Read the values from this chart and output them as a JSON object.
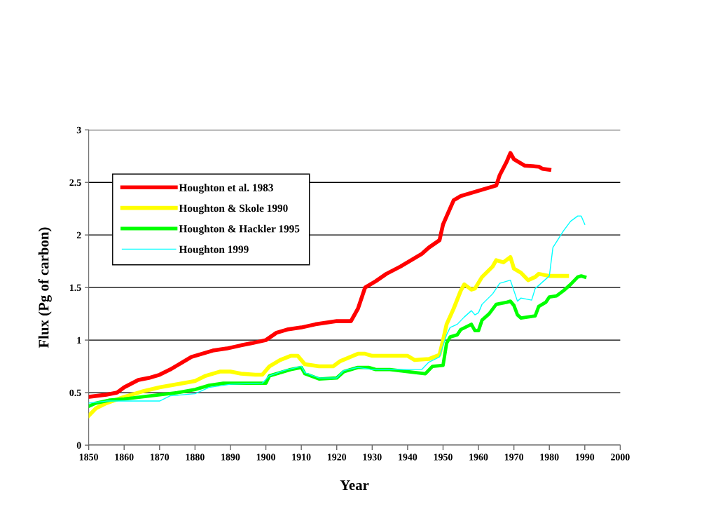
{
  "chart_data": {
    "type": "line",
    "xlabel": "Year",
    "ylabel": "Flux (Pg of carbon)",
    "xlim": [
      1850,
      2000
    ],
    "xticks": [
      1850,
      1860,
      1870,
      1880,
      1890,
      1900,
      1910,
      1920,
      1930,
      1940,
      1950,
      1960,
      1970,
      1980,
      1990,
      2000
    ],
    "ylim": [
      0,
      3
    ],
    "yticks": [
      0,
      0.5,
      1,
      1.5,
      2,
      2.5,
      3
    ],
    "grid": "y",
    "legend": "top left",
    "marker": "none",
    "line_style": "solid",
    "series": [
      {
        "name": "Houghton et al. 1983",
        "color": "#ff0000",
        "x": [
          1850,
          1855,
          1858,
          1860,
          1864,
          1867,
          1870,
          1873,
          1876,
          1879,
          1882,
          1885,
          1889,
          1893,
          1896,
          1900,
          1903,
          1906,
          1910,
          1914,
          1920,
          1924,
          1926,
          1928,
          1931,
          1934,
          1938,
          1941,
          1944,
          1946,
          1949,
          1950,
          1953,
          1955,
          1958,
          1961,
          1965,
          1966,
          1968,
          1969,
          1970,
          1973,
          1977,
          1978,
          1980
        ],
        "values": [
          0.46,
          0.48,
          0.5,
          0.55,
          0.62,
          0.64,
          0.67,
          0.72,
          0.78,
          0.84,
          0.87,
          0.9,
          0.92,
          0.95,
          0.97,
          1.0,
          1.07,
          1.1,
          1.12,
          1.15,
          1.18,
          1.18,
          1.3,
          1.5,
          1.56,
          1.63,
          1.7,
          1.76,
          1.82,
          1.88,
          1.95,
          2.1,
          2.33,
          2.37,
          2.4,
          2.43,
          2.47,
          2.57,
          2.7,
          2.78,
          2.72,
          2.66,
          2.65,
          2.63,
          2.62
        ]
      },
      {
        "name": "Houghton & Skole 1990",
        "color": "#ffff00",
        "x": [
          1850,
          1852,
          1855,
          1860,
          1865,
          1870,
          1875,
          1880,
          1883,
          1887,
          1890,
          1893,
          1897,
          1899,
          1901,
          1904,
          1907,
          1909,
          1911,
          1915,
          1919,
          1921,
          1926,
          1928,
          1930,
          1935,
          1940,
          1942,
          1946,
          1949,
          1950,
          1951,
          1953,
          1955,
          1956,
          1958,
          1959,
          1961,
          1964,
          1965,
          1967,
          1969,
          1970,
          1972,
          1974,
          1976,
          1977,
          1980,
          1985
        ],
        "values": [
          0.28,
          0.35,
          0.4,
          0.46,
          0.51,
          0.55,
          0.58,
          0.61,
          0.66,
          0.7,
          0.7,
          0.68,
          0.67,
          0.67,
          0.75,
          0.81,
          0.85,
          0.85,
          0.77,
          0.75,
          0.75,
          0.8,
          0.87,
          0.87,
          0.85,
          0.85,
          0.85,
          0.81,
          0.82,
          0.86,
          1.0,
          1.15,
          1.3,
          1.47,
          1.53,
          1.48,
          1.49,
          1.6,
          1.7,
          1.76,
          1.74,
          1.79,
          1.68,
          1.64,
          1.57,
          1.6,
          1.63,
          1.61,
          1.61
        ]
      },
      {
        "name": "Houghton & Hackler 1995",
        "color": "#00ff00",
        "x": [
          1850,
          1852,
          1856,
          1860,
          1865,
          1870,
          1875,
          1880,
          1884,
          1888,
          1895,
          1900,
          1901,
          1904,
          1907,
          1910,
          1911,
          1915,
          1920,
          1922,
          1926,
          1929,
          1931,
          1935,
          1940,
          1945,
          1947,
          1950,
          1951,
          1952,
          1954,
          1955,
          1958,
          1959,
          1960,
          1961,
          1963,
          1965,
          1968,
          1969,
          1970,
          1971,
          1972,
          1974,
          1976,
          1977,
          1979,
          1980,
          1982,
          1984,
          1986,
          1988,
          1989,
          1990
        ],
        "values": [
          0.37,
          0.4,
          0.43,
          0.44,
          0.46,
          0.48,
          0.5,
          0.53,
          0.57,
          0.59,
          0.59,
          0.59,
          0.66,
          0.69,
          0.72,
          0.74,
          0.68,
          0.63,
          0.64,
          0.7,
          0.74,
          0.74,
          0.72,
          0.72,
          0.7,
          0.68,
          0.75,
          0.76,
          0.97,
          1.03,
          1.05,
          1.1,
          1.15,
          1.09,
          1.09,
          1.19,
          1.25,
          1.34,
          1.36,
          1.37,
          1.33,
          1.24,
          1.21,
          1.22,
          1.23,
          1.32,
          1.36,
          1.41,
          1.42,
          1.47,
          1.53,
          1.6,
          1.61,
          1.6
        ]
      },
      {
        "name": "Houghton 1999",
        "color": "#00ffff",
        "x": [
          1850,
          1855,
          1860,
          1870,
          1873,
          1880,
          1884,
          1890,
          1899,
          1901,
          1905,
          1910,
          1911,
          1915,
          1920,
          1922,
          1926,
          1930,
          1944,
          1946,
          1949,
          1951,
          1952,
          1954,
          1956,
          1958,
          1959,
          1960,
          1961,
          1964,
          1966,
          1969,
          1970,
          1971,
          1972,
          1975,
          1976,
          1978,
          1980,
          1981,
          1984,
          1986,
          1988,
          1989,
          1990
        ],
        "values": [
          0.4,
          0.42,
          0.42,
          0.42,
          0.47,
          0.49,
          0.55,
          0.58,
          0.59,
          0.66,
          0.71,
          0.75,
          0.69,
          0.64,
          0.64,
          0.71,
          0.74,
          0.72,
          0.72,
          0.79,
          0.84,
          1.05,
          1.12,
          1.15,
          1.22,
          1.28,
          1.24,
          1.26,
          1.34,
          1.44,
          1.54,
          1.57,
          1.47,
          1.37,
          1.4,
          1.38,
          1.49,
          1.55,
          1.61,
          1.88,
          2.04,
          2.13,
          2.18,
          2.18,
          2.1
        ]
      }
    ]
  }
}
